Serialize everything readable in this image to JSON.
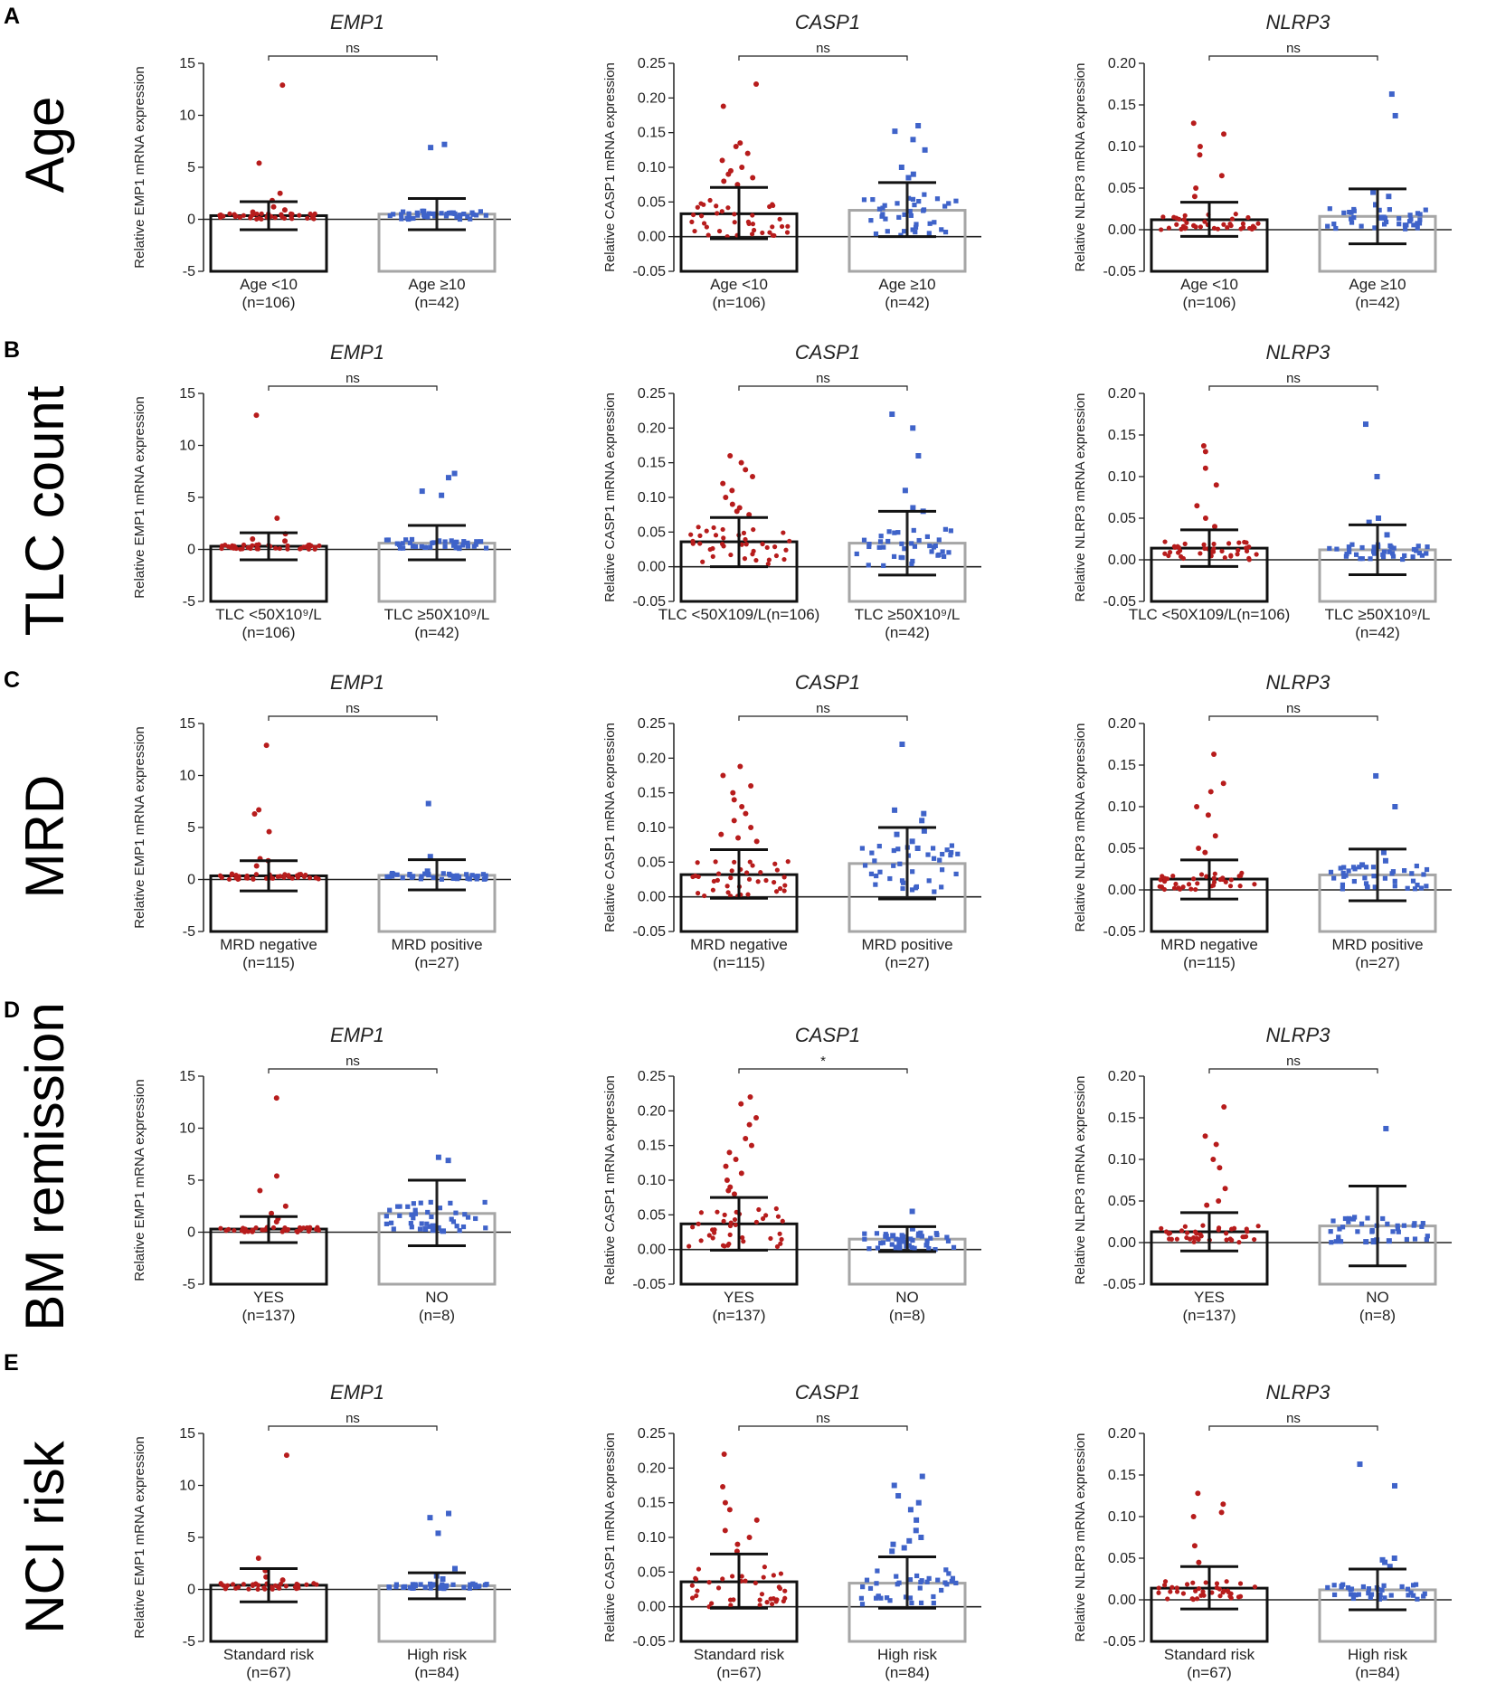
{
  "colors": {
    "red": "#b71c1c",
    "blue": "#3f63c9",
    "bar1": "#111111",
    "bar2": "#a6a6a6",
    "axis": "#222222"
  },
  "rows": [
    {
      "letter": "A",
      "label": "Age"
    },
    {
      "letter": "B",
      "label": "TLC count"
    },
    {
      "letter": "C",
      "label": "MRD"
    },
    {
      "letter": "D",
      "label": "BM remission"
    },
    {
      "letter": "E",
      "label": "NCI risk"
    }
  ],
  "chart_data": [
    {
      "id": "A-EMP1",
      "type": "bar",
      "title": "EMP1",
      "ylabel": "Relative EMP1 mRNA expression",
      "ylim": [
        -5,
        15
      ],
      "yticks": [
        -5,
        0,
        5,
        10,
        15
      ],
      "significance": "ns",
      "groups": [
        {
          "label": "Age <10",
          "n": "(n=106)",
          "mean": 0.35,
          "sd_low": -1.0,
          "sd_high": 1.7,
          "points": [
            12.9,
            5.4,
            2.5,
            1.8,
            1.2,
            0.9,
            0.7
          ]
        },
        {
          "label": "Age ≥10",
          "n": "(n=42)",
          "mean": 0.5,
          "sd_low": -1.0,
          "sd_high": 2.0,
          "points": [
            7.2,
            6.9,
            0.6,
            0.3
          ]
        }
      ]
    },
    {
      "id": "A-CASP1",
      "type": "bar",
      "title": "CASP1",
      "ylabel": "Relative CASP1 mRNA expression",
      "ylim": [
        -0.05,
        0.25
      ],
      "yticks": [
        -0.05,
        0.0,
        0.05,
        0.1,
        0.15,
        0.2,
        0.25
      ],
      "significance": "ns",
      "groups": [
        {
          "label": "Age <10",
          "n": "(n=106)",
          "mean": 0.033,
          "sd_low": -0.003,
          "sd_high": 0.071,
          "points": [
            0.22,
            0.188,
            0.135,
            0.13,
            0.12,
            0.11,
            0.1,
            0.095,
            0.09,
            0.085,
            0.08,
            0.075
          ]
        },
        {
          "label": "Age ≥10",
          "n": "(n=42)",
          "mean": 0.038,
          "sd_low": 0.0,
          "sd_high": 0.078,
          "points": [
            0.16,
            0.152,
            0.14,
            0.125,
            0.1,
            0.09,
            0.085
          ]
        }
      ]
    },
    {
      "id": "A-NLRP3",
      "type": "bar",
      "title": "NLRP3",
      "ylabel": "Relative NLRP3 mRNA expression",
      "ylim": [
        -0.05,
        0.2
      ],
      "yticks": [
        -0.05,
        0.0,
        0.05,
        0.1,
        0.15,
        0.2
      ],
      "significance": "ns",
      "groups": [
        {
          "label": "Age <10",
          "n": "(n=106)",
          "mean": 0.012,
          "sd_low": -0.008,
          "sd_high": 0.033,
          "points": [
            0.128,
            0.115,
            0.1,
            0.09,
            0.065,
            0.05,
            0.04
          ]
        },
        {
          "label": "Age ≥10",
          "n": "(n=42)",
          "mean": 0.016,
          "sd_low": -0.017,
          "sd_high": 0.049,
          "points": [
            0.163,
            0.137,
            0.045,
            0.04,
            0.03
          ]
        }
      ]
    },
    {
      "id": "B-EMP1",
      "type": "bar",
      "title": "EMP1",
      "ylabel": "Relative EMP1 mRNA expression",
      "ylim": [
        -5,
        15
      ],
      "yticks": [
        -5,
        0,
        5,
        10,
        15
      ],
      "significance": "ns",
      "groups": [
        {
          "label": "TLC <50X10⁹/L",
          "n": "(n=106)",
          "mean": 0.3,
          "sd_low": -1.0,
          "sd_high": 1.6,
          "points": [
            12.9,
            3.0,
            1.5,
            1.0,
            0.8
          ]
        },
        {
          "label": "TLC ≥50X10⁹/L",
          "n": "(n=42)",
          "mean": 0.6,
          "sd_low": -1.0,
          "sd_high": 2.3,
          "points": [
            7.3,
            6.9,
            5.6,
            5.2,
            0.8
          ]
        }
      ]
    },
    {
      "id": "B-CASP1",
      "type": "bar",
      "title": "CASP1",
      "ylabel": "Relative CASP1 mRNA expression",
      "ylim": [
        -0.05,
        0.25
      ],
      "yticks": [
        -0.05,
        0.0,
        0.05,
        0.1,
        0.15,
        0.2,
        0.25
      ],
      "significance": "ns",
      "groups": [
        {
          "label": "TLC <50X109/L(n=106)",
          "n": "",
          "mean": 0.036,
          "sd_low": 0.0,
          "sd_high": 0.071,
          "points": [
            0.16,
            0.15,
            0.14,
            0.13,
            0.12,
            0.11,
            0.1,
            0.09,
            0.085,
            0.08,
            0.075
          ]
        },
        {
          "label": "TLC ≥50X10⁹/L",
          "n": "(n=42)",
          "mean": 0.034,
          "sd_low": -0.012,
          "sd_high": 0.08,
          "points": [
            0.22,
            0.2,
            0.16,
            0.11,
            0.085,
            0.08
          ]
        }
      ]
    },
    {
      "id": "B-NLRP3",
      "type": "bar",
      "title": "NLRP3",
      "ylabel": "Relative NLRP3 mRNA expression",
      "ylim": [
        -0.05,
        0.2
      ],
      "yticks": [
        -0.05,
        0.0,
        0.05,
        0.1,
        0.15,
        0.2
      ],
      "significance": "ns",
      "groups": [
        {
          "label": "TLC <50X109/L(n=106)",
          "n": "",
          "mean": 0.014,
          "sd_low": -0.008,
          "sd_high": 0.036,
          "points": [
            0.137,
            0.13,
            0.11,
            0.09,
            0.065,
            0.05,
            0.04
          ]
        },
        {
          "label": "TLC ≥50X10⁹/L",
          "n": "(n=42)",
          "mean": 0.012,
          "sd_low": -0.018,
          "sd_high": 0.042,
          "points": [
            0.163,
            0.1,
            0.05,
            0.045,
            0.03
          ]
        }
      ]
    },
    {
      "id": "C-EMP1",
      "type": "bar",
      "title": "EMP1",
      "ylabel": "Relative EMP1 mRNA expression",
      "ylim": [
        -5,
        15
      ],
      "yticks": [
        -5,
        0,
        5,
        10,
        15
      ],
      "significance": "ns",
      "groups": [
        {
          "label": "MRD negative",
          "n": "(n=115)",
          "mean": 0.35,
          "sd_low": -1.1,
          "sd_high": 1.8,
          "points": [
            12.9,
            6.7,
            6.3,
            4.6,
            2.0,
            1.8,
            1.3
          ]
        },
        {
          "label": "MRD positive",
          "n": "(n=27)",
          "mean": 0.4,
          "sd_low": -1.0,
          "sd_high": 1.9,
          "points": [
            7.3,
            2.2,
            0.8
          ]
        }
      ]
    },
    {
      "id": "C-CASP1",
      "type": "bar",
      "title": "CASP1",
      "ylabel": "Relative CASP1 mRNA expression",
      "ylim": [
        -0.05,
        0.25
      ],
      "yticks": [
        -0.05,
        0.0,
        0.05,
        0.1,
        0.15,
        0.2,
        0.25
      ],
      "significance": "ns",
      "groups": [
        {
          "label": "MRD negative",
          "n": "(n=115)",
          "mean": 0.032,
          "sd_low": -0.002,
          "sd_high": 0.068,
          "points": [
            0.188,
            0.175,
            0.16,
            0.15,
            0.14,
            0.13,
            0.12,
            0.11,
            0.1,
            0.09,
            0.085,
            0.08
          ]
        },
        {
          "label": "MRD positive",
          "n": "(n=27)",
          "mean": 0.048,
          "sd_low": -0.003,
          "sd_high": 0.1,
          "points": [
            0.22,
            0.125,
            0.12,
            0.11,
            0.095,
            0.09,
            0.08,
            0.07
          ]
        }
      ]
    },
    {
      "id": "C-NLRP3",
      "type": "bar",
      "title": "NLRP3",
      "ylabel": "Relative NLRP3 mRNA expression",
      "ylim": [
        -0.05,
        0.2
      ],
      "yticks": [
        -0.05,
        0.0,
        0.05,
        0.1,
        0.15,
        0.2
      ],
      "significance": "ns",
      "groups": [
        {
          "label": "MRD negative",
          "n": "(n=115)",
          "mean": 0.013,
          "sd_low": -0.011,
          "sd_high": 0.036,
          "points": [
            0.163,
            0.128,
            0.118,
            0.1,
            0.09,
            0.065,
            0.05,
            0.045
          ]
        },
        {
          "label": "MRD positive",
          "n": "(n=27)",
          "mean": 0.018,
          "sd_low": -0.013,
          "sd_high": 0.049,
          "points": [
            0.137,
            0.1,
            0.045,
            0.035,
            0.03
          ]
        }
      ]
    },
    {
      "id": "D-EMP1",
      "type": "bar",
      "title": "EMP1",
      "ylabel": "Relative EMP1 mRNA expression",
      "ylim": [
        -5,
        15
      ],
      "yticks": [
        -5,
        0,
        5,
        10,
        15
      ],
      "significance": "ns",
      "groups": [
        {
          "label": "YES",
          "n": "(n=137)",
          "mean": 0.3,
          "sd_low": -1.0,
          "sd_high": 1.5,
          "points": [
            12.9,
            5.4,
            4.0,
            2.5,
            1.8,
            1.3,
            1.0
          ]
        },
        {
          "label": "NO",
          "n": "(n=8)",
          "mean": 1.8,
          "sd_low": -1.3,
          "sd_high": 5.0,
          "points": [
            7.2,
            6.9,
            0.6,
            0.4,
            0.3,
            0.2,
            0.1
          ]
        }
      ]
    },
    {
      "id": "D-CASP1",
      "type": "bar",
      "title": "CASP1",
      "ylabel": "Relative CASP1 mRNA expression",
      "ylim": [
        -0.05,
        0.25
      ],
      "yticks": [
        -0.05,
        0.0,
        0.05,
        0.1,
        0.15,
        0.2,
        0.25
      ],
      "significance": "*",
      "groups": [
        {
          "label": "YES",
          "n": "(n=137)",
          "mean": 0.037,
          "sd_low": -0.001,
          "sd_high": 0.075,
          "points": [
            0.22,
            0.21,
            0.19,
            0.18,
            0.16,
            0.15,
            0.14,
            0.13,
            0.12,
            0.11,
            0.1,
            0.09,
            0.085,
            0.08
          ]
        },
        {
          "label": "NO",
          "n": "(n=8)",
          "mean": 0.015,
          "sd_low": -0.003,
          "sd_high": 0.033,
          "points": [
            0.055,
            0.03,
            0.02,
            0.012,
            0.008,
            0.005,
            0.003
          ]
        }
      ]
    },
    {
      "id": "D-NLRP3",
      "type": "bar",
      "title": "NLRP3",
      "ylabel": "Relative NLRP3 mRNA expression",
      "ylim": [
        -0.05,
        0.2
      ],
      "yticks": [
        -0.05,
        0.0,
        0.05,
        0.1,
        0.15,
        0.2
      ],
      "significance": "ns",
      "groups": [
        {
          "label": "YES",
          "n": "(n=137)",
          "mean": 0.013,
          "sd_low": -0.01,
          "sd_high": 0.036,
          "points": [
            0.163,
            0.128,
            0.118,
            0.1,
            0.09,
            0.065,
            0.05,
            0.045
          ]
        },
        {
          "label": "NO",
          "n": "(n=8)",
          "mean": 0.02,
          "sd_low": -0.028,
          "sd_high": 0.068,
          "points": [
            0.137,
            0.003,
            0.002,
            0.001,
            0.001
          ]
        }
      ]
    },
    {
      "id": "E-EMP1",
      "type": "bar",
      "title": "EMP1",
      "ylabel": "Relative EMP1 mRNA expression",
      "ylim": [
        -5,
        15
      ],
      "yticks": [
        -5,
        0,
        5,
        10,
        15
      ],
      "significance": "ns",
      "groups": [
        {
          "label": "Standard risk",
          "n": "(n=67)",
          "mean": 0.4,
          "sd_low": -1.2,
          "sd_high": 2.0,
          "points": [
            12.9,
            3.0,
            1.8,
            1.2,
            0.9
          ]
        },
        {
          "label": "High risk",
          "n": "(n=84)",
          "mean": 0.35,
          "sd_low": -0.9,
          "sd_high": 1.6,
          "points": [
            7.3,
            6.9,
            5.4,
            2.0,
            1.3,
            1.0
          ]
        }
      ]
    },
    {
      "id": "E-CASP1",
      "type": "bar",
      "title": "CASP1",
      "ylabel": "Relative CASP1 mRNA expression",
      "ylim": [
        -0.05,
        0.25
      ],
      "yticks": [
        -0.05,
        0.0,
        0.05,
        0.1,
        0.15,
        0.2,
        0.25
      ],
      "significance": "ns",
      "groups": [
        {
          "label": "Standard risk",
          "n": "(n=67)",
          "mean": 0.036,
          "sd_low": -0.002,
          "sd_high": 0.076,
          "points": [
            0.22,
            0.173,
            0.15,
            0.14,
            0.125,
            0.11,
            0.1,
            0.09,
            0.08
          ]
        },
        {
          "label": "High risk",
          "n": "(n=84)",
          "mean": 0.034,
          "sd_low": -0.002,
          "sd_high": 0.072,
          "points": [
            0.188,
            0.175,
            0.16,
            0.15,
            0.14,
            0.125,
            0.11,
            0.1,
            0.095,
            0.09,
            0.085,
            0.08
          ]
        }
      ]
    },
    {
      "id": "E-NLRP3",
      "type": "bar",
      "title": "NLRP3",
      "ylabel": "Relative NLRP3 mRNA expression",
      "ylim": [
        -0.05,
        0.2
      ],
      "yticks": [
        -0.05,
        0.0,
        0.05,
        0.1,
        0.15,
        0.2
      ],
      "significance": "ns",
      "groups": [
        {
          "label": "Standard risk",
          "n": "(n=67)",
          "mean": 0.014,
          "sd_low": -0.011,
          "sd_high": 0.04,
          "points": [
            0.128,
            0.115,
            0.105,
            0.1,
            0.065,
            0.045
          ]
        },
        {
          "label": "High risk",
          "n": "(n=84)",
          "mean": 0.012,
          "sd_low": -0.012,
          "sd_high": 0.037,
          "points": [
            0.163,
            0.137,
            0.05,
            0.048,
            0.045,
            0.04
          ]
        }
      ]
    }
  ]
}
